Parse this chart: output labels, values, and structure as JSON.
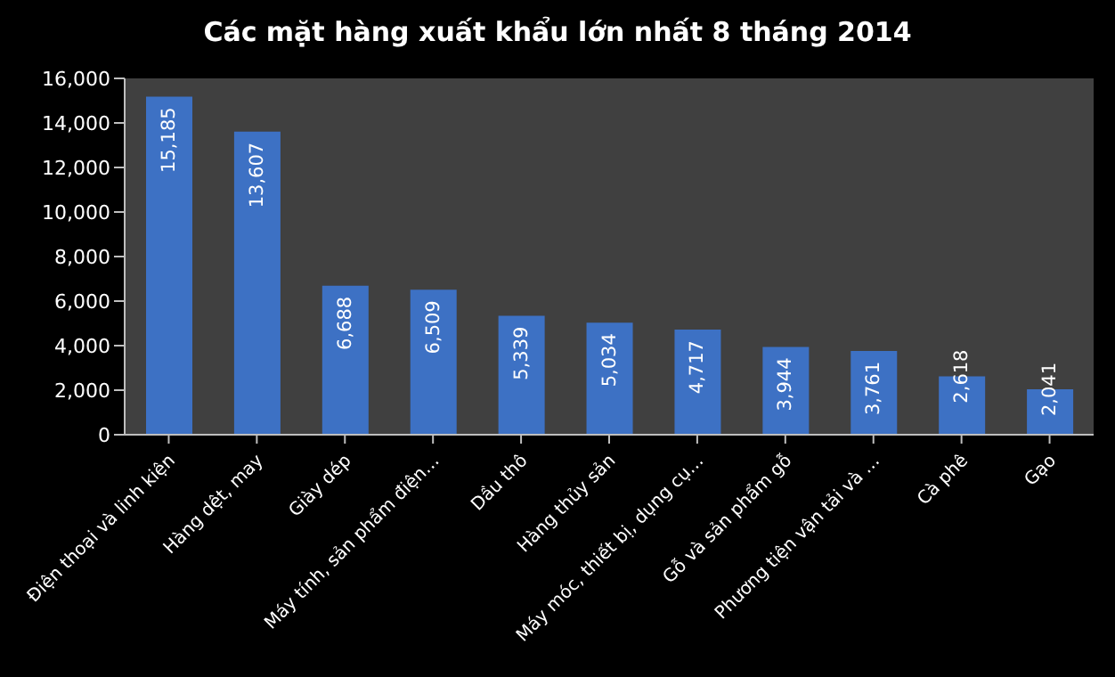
{
  "chart_data": {
    "type": "bar",
    "title": "Các mặt hàng xuất khẩu lớn nhất 8 tháng 2014",
    "categories": [
      "Điện thoại và linh kiện",
      "Hàng dệt, may",
      "Giày dép",
      "Máy tính, sản phẩm điện…",
      "Dầu thô",
      "Hàng thủy sản",
      "Máy móc, thiết bị, dụng cụ…",
      "Gỗ và sản phẩm gỗ",
      "Phương tiện vận tải và …",
      "Cà phê",
      "Gạo"
    ],
    "values": [
      15185,
      13607,
      6688,
      6509,
      5339,
      5034,
      4717,
      3944,
      3761,
      2618,
      2041
    ],
    "value_labels": [
      "15,185",
      "13,607",
      "6,688",
      "6,509",
      "5,339",
      "5,034",
      "4,717",
      "3,944",
      "3,761",
      "2,618",
      "2,041"
    ],
    "color": "#3d71c4",
    "ylim": [
      0,
      16000
    ],
    "yticks": [
      {
        "value": 0,
        "label": "0"
      },
      {
        "value": 2000,
        "label": "2,000"
      },
      {
        "value": 4000,
        "label": "4,000"
      },
      {
        "value": 6000,
        "label": "6,000"
      },
      {
        "value": 8000,
        "label": "8,000"
      },
      {
        "value": 10000,
        "label": "10,000"
      },
      {
        "value": 12000,
        "label": "12,000"
      },
      {
        "value": 14000,
        "label": "14,000"
      },
      {
        "value": 16000,
        "label": "16,000"
      }
    ],
    "grid": false,
    "legend": false
  }
}
